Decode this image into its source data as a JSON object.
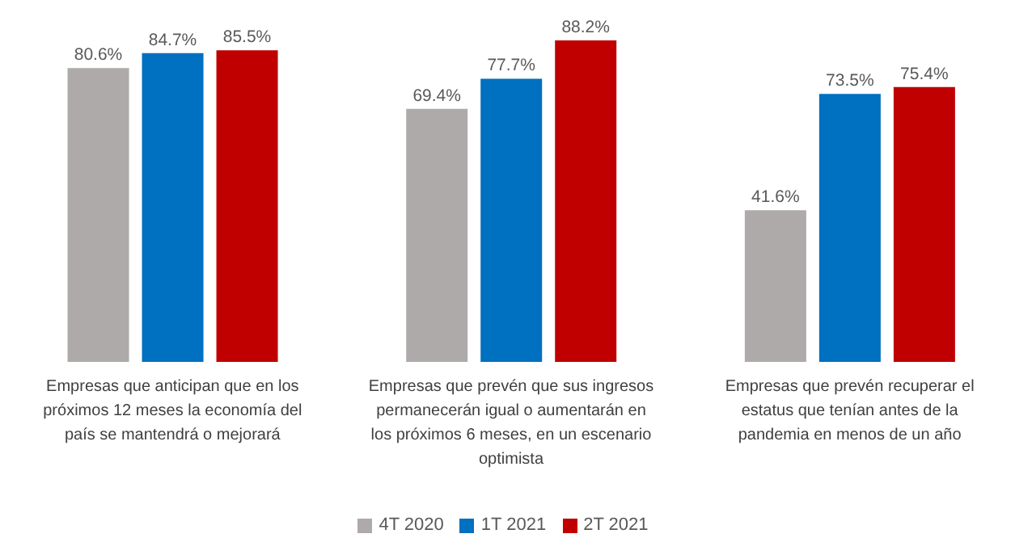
{
  "chart_data": {
    "type": "bar",
    "categories": [
      "Empresas que anticipan que en los próximos 12 meses la economía del país se mantendrá o mejorará",
      "Empresas que prevén que sus ingresos permanecerán igual o aumentarán en los próximos 6 meses, en un escenario optimista",
      "Empresas que prevén recuperar el estatus que tenían antes de la pandemia en menos de un año"
    ],
    "series": [
      {
        "name": "4T 2020",
        "color": "#aeaaaa",
        "values": [
          80.6,
          69.4,
          41.6
        ],
        "value_labels": [
          "80.6%",
          "69.4%",
          "41.6%"
        ]
      },
      {
        "name": "1T 2021",
        "color": "#0070c0",
        "values": [
          84.7,
          77.7,
          73.5
        ],
        "value_labels": [
          "84.7%",
          "77.7%",
          "73.5%"
        ]
      },
      {
        "name": "2T 2021",
        "color": "#c00000",
        "values": [
          85.5,
          88.2,
          75.4
        ],
        "value_labels": [
          "85.5%",
          "88.2%",
          "75.4%"
        ]
      }
    ],
    "tick_labels": "x",
    "legend": "bottom"
  }
}
